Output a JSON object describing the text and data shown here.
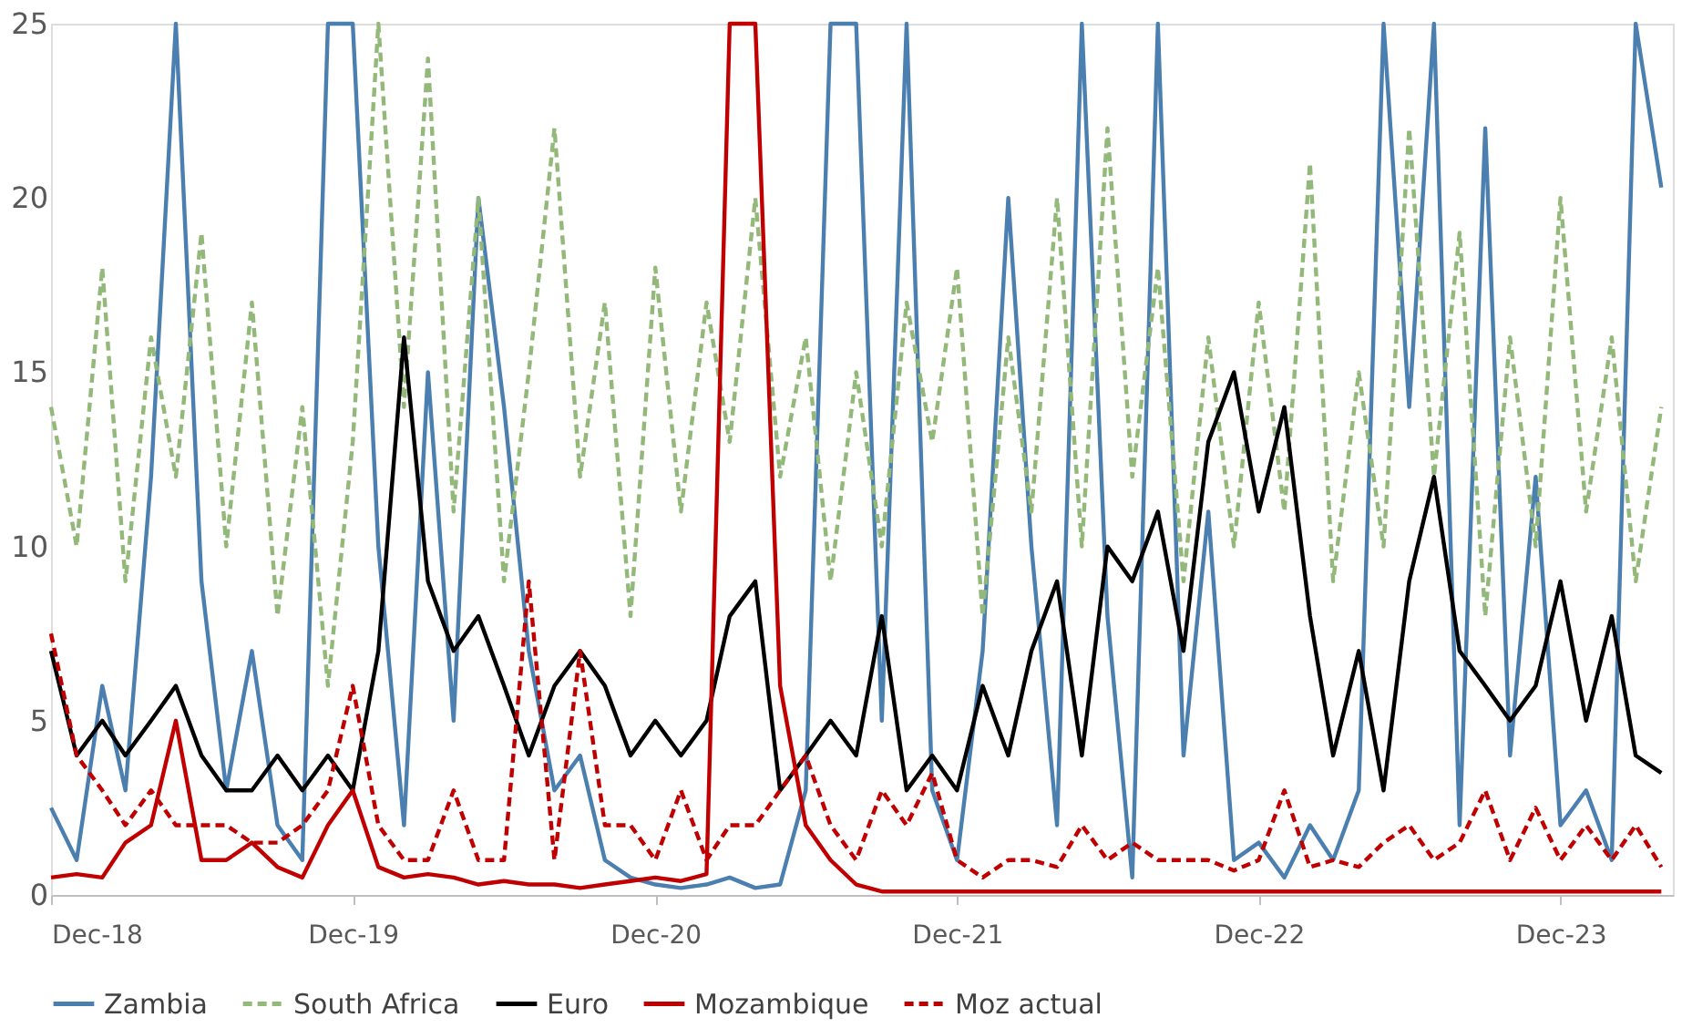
{
  "chart_data": {
    "type": "line",
    "x": [
      "2018-12",
      "2019-01",
      "2019-02",
      "2019-03",
      "2019-04",
      "2019-05",
      "2019-06",
      "2019-07",
      "2019-08",
      "2019-09",
      "2019-10",
      "2019-11",
      "2019-12",
      "2020-01",
      "2020-02",
      "2020-03",
      "2020-04",
      "2020-05",
      "2020-06",
      "2020-07",
      "2020-08",
      "2020-09",
      "2020-10",
      "2020-11",
      "2020-12",
      "2021-01",
      "2021-02",
      "2021-03",
      "2021-04",
      "2021-05",
      "2021-06",
      "2021-07",
      "2021-08",
      "2021-09",
      "2021-10",
      "2021-11",
      "2021-12",
      "2022-01",
      "2022-02",
      "2022-03",
      "2022-04",
      "2022-05",
      "2022-06",
      "2022-07",
      "2022-08",
      "2022-09",
      "2022-10",
      "2022-11",
      "2022-12",
      "2023-01",
      "2023-02",
      "2023-03",
      "2023-04",
      "2023-05",
      "2023-06",
      "2023-07",
      "2023-08",
      "2023-09",
      "2023-10",
      "2023-11",
      "2023-12",
      "2024-01",
      "2024-02",
      "2024-03",
      "2024-04"
    ],
    "series": [
      {
        "name": "Zambia",
        "color": "#4a7fb0",
        "line_style": "solid",
        "values": [
          2.5,
          1,
          6,
          3,
          12,
          25,
          9,
          3,
          7,
          2,
          1,
          25,
          25,
          10,
          2,
          15,
          5,
          20,
          14,
          7,
          3,
          4,
          1,
          0.5,
          0.3,
          0.2,
          0.3,
          0.5,
          0.2,
          0.3,
          3,
          25,
          25,
          5,
          25,
          3,
          1,
          7,
          20,
          10,
          2,
          25,
          8,
          0.5,
          25,
          4,
          11,
          1,
          1.5,
          0.5,
          2,
          1,
          3,
          25,
          14,
          25,
          2,
          22,
          4,
          12,
          2,
          3,
          1,
          25,
          20.3
        ]
      },
      {
        "name": "South Africa",
        "color": "#93b97a",
        "line_style": "dashed",
        "values": [
          14,
          10,
          18,
          9,
          16,
          12,
          19,
          10,
          17,
          8,
          14,
          6,
          13,
          25,
          14,
          24,
          11,
          20,
          9,
          15,
          22,
          12,
          17,
          8,
          18,
          11,
          17,
          13,
          20,
          12,
          16,
          9,
          15,
          10,
          17,
          13,
          18,
          8,
          16,
          11,
          20,
          10,
          22,
          12,
          18,
          9,
          16,
          10,
          17,
          11,
          21,
          9,
          15,
          10,
          22,
          12,
          19,
          8,
          16,
          10,
          20,
          11,
          16,
          9,
          14
        ]
      },
      {
        "name": "Euro",
        "color": "#000000",
        "line_style": "solid",
        "values": [
          7,
          4,
          5,
          4,
          5,
          6,
          4,
          3,
          3,
          4,
          3,
          4,
          3,
          7,
          16,
          9,
          7,
          8,
          6,
          4,
          6,
          7,
          6,
          4,
          5,
          4,
          5,
          8,
          9,
          3,
          4,
          5,
          4,
          8,
          3,
          4,
          3,
          6,
          4,
          7,
          9,
          4,
          10,
          9,
          11,
          7,
          13,
          15,
          11,
          14,
          8,
          4,
          7,
          3,
          9,
          12,
          7,
          6,
          5,
          6,
          9,
          5,
          8,
          4,
          3.5
        ]
      },
      {
        "name": "Mozambique",
        "color": "#c00000",
        "line_style": "solid",
        "values": [
          0.5,
          0.6,
          0.5,
          1.5,
          2,
          5,
          1,
          1,
          1.5,
          0.8,
          0.5,
          2,
          3,
          0.8,
          0.5,
          0.6,
          0.5,
          0.3,
          0.4,
          0.3,
          0.3,
          0.2,
          0.3,
          0.4,
          0.5,
          0.4,
          0.6,
          25,
          25,
          6,
          2,
          1,
          0.3,
          0.1,
          0.1,
          0.1,
          0.1,
          0.1,
          0.1,
          0.1,
          0.1,
          0.1,
          0.1,
          0.1,
          0.1,
          0.1,
          0.1,
          0.1,
          0.1,
          0.1,
          0.1,
          0.1,
          0.1,
          0.1,
          0.1,
          0.1,
          0.1,
          0.1,
          0.1,
          0.1,
          0.1,
          0.1,
          0.1,
          0.1,
          0.1
        ]
      },
      {
        "name": "Moz actual",
        "color": "#c00000",
        "line_style": "dashed",
        "values": [
          7.5,
          4,
          3,
          2,
          3,
          2,
          2,
          2,
          1.5,
          1.5,
          2,
          3,
          6,
          2,
          1,
          1,
          3,
          1,
          1,
          9,
          1,
          7,
          2,
          2,
          1,
          3,
          1,
          2,
          2,
          3,
          4,
          2,
          1,
          3,
          2,
          3.5,
          1,
          0.5,
          1,
          1,
          0.8,
          2,
          1,
          1.5,
          1,
          1,
          1,
          0.7,
          1,
          3,
          0.8,
          1,
          0.8,
          1.5,
          2,
          1,
          1.5,
          3,
          1,
          2.5,
          1,
          2,
          1,
          2,
          0.8
        ]
      }
    ],
    "xlim": [
      "2018-12",
      "2024-04-15"
    ],
    "xticks": [
      {
        "value": "2018-12",
        "label": "Dec-18"
      },
      {
        "value": "2019-12",
        "label": "Dec-19"
      },
      {
        "value": "2020-12",
        "label": "Dec-20"
      },
      {
        "value": "2021-12",
        "label": "Dec-21"
      },
      {
        "value": "2022-12",
        "label": "Dec-22"
      },
      {
        "value": "2023-12",
        "label": "Dec-23"
      }
    ],
    "ylim": [
      0,
      25
    ],
    "yticks": [
      0,
      5,
      10,
      15,
      20,
      25
    ],
    "grid": false,
    "legend": "bottom",
    "marker": "none"
  }
}
